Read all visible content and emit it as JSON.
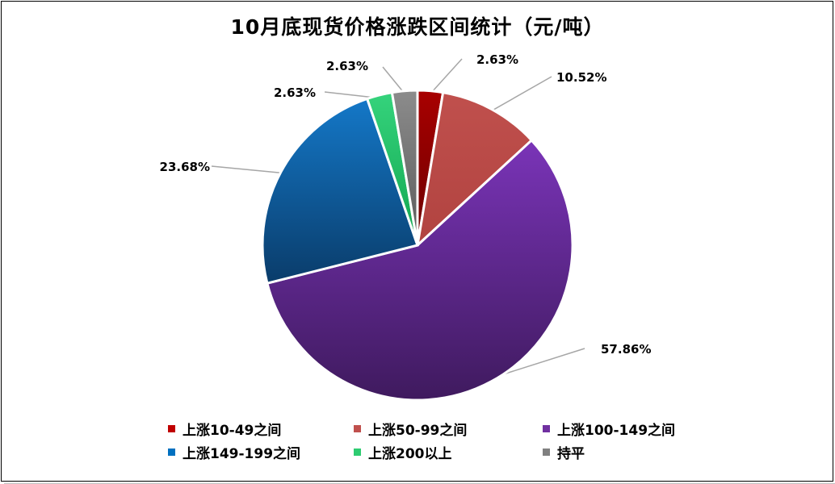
{
  "chart_data": {
    "type": "pie",
    "title": "10月底现货价格涨跌区间统计（元/吨）",
    "slices": [
      {
        "name": "上涨10-49之间",
        "value": 2.63,
        "label": "2.63%",
        "color": "#c00000",
        "gradient": [
          "#a80000",
          "#6b0000"
        ]
      },
      {
        "name": "上涨50-99之间",
        "value": 10.52,
        "label": "10.52%",
        "color": "#c0504d",
        "gradient": [
          "#c0504d",
          "#b14340"
        ]
      },
      {
        "name": "上涨100-149之间",
        "value": 57.86,
        "label": "57.86%",
        "color": "#7030a0",
        "gradient": [
          "#7a34b8",
          "#3f1a5e"
        ]
      },
      {
        "name": "上涨149-199之间",
        "value": 23.68,
        "label": "23.68%",
        "color": "#0070c0",
        "gradient": [
          "#1478c8",
          "#0a3c6a"
        ]
      },
      {
        "name": "上涨200以上",
        "value": 2.63,
        "label": "2.63%",
        "color": "#2ecc71",
        "gradient": [
          "#35d37c",
          "#12a650"
        ]
      },
      {
        "name": "持平",
        "value": 2.63,
        "label": "2.63%",
        "color": "#808080",
        "gradient": [
          "#8c8c8c",
          "#5a5a5a"
        ]
      }
    ],
    "legend_position": "bottom"
  }
}
